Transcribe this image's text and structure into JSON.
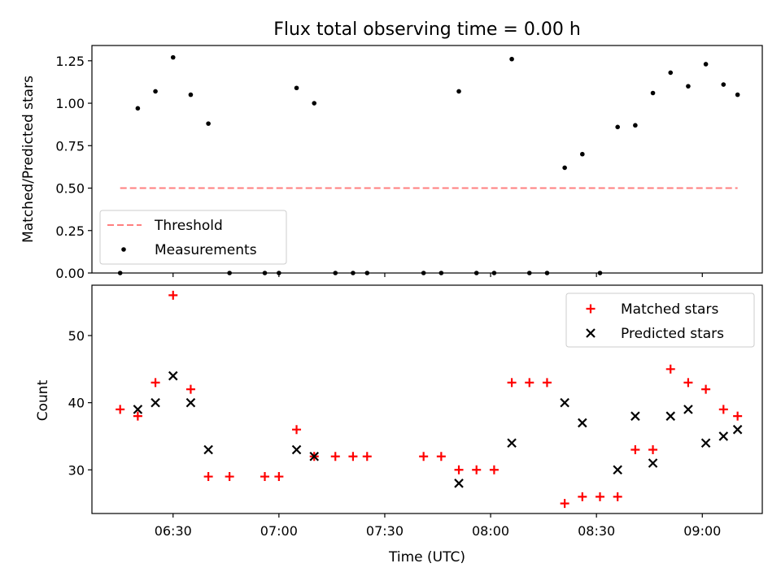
{
  "chart_data": [
    {
      "type": "scatter",
      "title": "Flux total observing time = 0.00 h",
      "xlabel": "",
      "ylabel": "Matched/Predicted stars",
      "xlim": [
        "06:07",
        "09:17"
      ],
      "ylim": [
        0,
        1.34
      ],
      "yticks": [
        "0.00",
        "0.25",
        "0.50",
        "0.75",
        "1.00",
        "1.25"
      ],
      "ytick_values": [
        0,
        0.25,
        0.5,
        0.75,
        1.0,
        1.25
      ],
      "xticks": [
        "06:30",
        "07:00",
        "07:30",
        "08:00",
        "08:30",
        "09:00"
      ],
      "show_xtick_labels": false,
      "grid": false,
      "legend": {
        "placement": "lower-left",
        "entries": [
          "Threshold",
          "Measurements"
        ]
      },
      "series": [
        {
          "name": "Threshold",
          "style": "dashed-line",
          "color": "#ff7f7f",
          "x": [
            "06:15",
            "09:10"
          ],
          "y": [
            0.5,
            0.5
          ]
        },
        {
          "name": "Measurements",
          "style": "dot",
          "color": "#000000",
          "x": [
            "06:15",
            "06:20",
            "06:25",
            "06:30",
            "06:35",
            "06:40",
            "06:46",
            "06:56",
            "07:00",
            "07:05",
            "07:10",
            "07:16",
            "07:21",
            "07:25",
            "07:41",
            "07:46",
            "07:51",
            "07:56",
            "08:01",
            "08:06",
            "08:11",
            "08:16",
            "08:21",
            "08:26",
            "08:31",
            "08:36",
            "08:41",
            "08:46",
            "08:51",
            "08:56",
            "09:01",
            "09:06",
            "09:10"
          ],
          "y": [
            0.0,
            0.97,
            1.07,
            1.27,
            1.05,
            0.88,
            0.0,
            0.0,
            0.0,
            1.09,
            1.0,
            0.0,
            0.0,
            0.0,
            0.0,
            0.0,
            1.07,
            0.0,
            0.0,
            1.26,
            0.0,
            0.0,
            0.62,
            0.7,
            0.0,
            0.86,
            0.87,
            1.06,
            1.18,
            1.1,
            1.23,
            1.11,
            1.05
          ]
        }
      ]
    },
    {
      "type": "scatter",
      "title": "",
      "xlabel": "Time (UTC)",
      "ylabel": "Count",
      "xlim": [
        "06:07",
        "09:17"
      ],
      "ylim": [
        23.5,
        57.5
      ],
      "yticks": [
        "30",
        "40",
        "50"
      ],
      "ytick_values": [
        30,
        40,
        50
      ],
      "xticks": [
        "06:30",
        "07:00",
        "07:30",
        "08:00",
        "08:30",
        "09:00"
      ],
      "show_xtick_labels": true,
      "grid": false,
      "legend": {
        "placement": "upper-right",
        "entries": [
          "Matched stars",
          "Predicted stars"
        ]
      },
      "series": [
        {
          "name": "Matched stars",
          "marker": "plus",
          "color": "#ff0000",
          "x": [
            "06:15",
            "06:20",
            "06:25",
            "06:30",
            "06:35",
            "06:40",
            "06:46",
            "06:56",
            "07:00",
            "07:05",
            "07:10",
            "07:16",
            "07:21",
            "07:25",
            "07:41",
            "07:46",
            "07:51",
            "07:56",
            "08:01",
            "08:06",
            "08:11",
            "08:16",
            "08:21",
            "08:26",
            "08:31",
            "08:36",
            "08:41",
            "08:46",
            "08:51",
            "08:56",
            "09:01",
            "09:06",
            "09:10"
          ],
          "y": [
            39,
            38,
            43,
            56,
            42,
            29,
            29,
            29,
            29,
            36,
            32,
            32,
            32,
            32,
            32,
            32,
            30,
            30,
            30,
            43,
            43,
            43,
            25,
            26,
            26,
            26,
            33,
            33,
            45,
            43,
            42,
            39,
            38
          ]
        },
        {
          "name": "Predicted stars",
          "marker": "x",
          "color": "#000000",
          "x": [
            "06:20",
            "06:25",
            "06:30",
            "06:35",
            "06:40",
            "07:05",
            "07:10",
            "07:51",
            "08:06",
            "08:21",
            "08:26",
            "08:36",
            "08:41",
            "08:46",
            "08:51",
            "08:56",
            "09:01",
            "09:06",
            "09:10"
          ],
          "y": [
            39,
            40,
            44,
            40,
            33,
            33,
            32,
            28,
            34,
            40,
            37,
            30,
            38,
            31,
            38,
            39,
            34,
            35,
            36
          ]
        }
      ]
    }
  ]
}
